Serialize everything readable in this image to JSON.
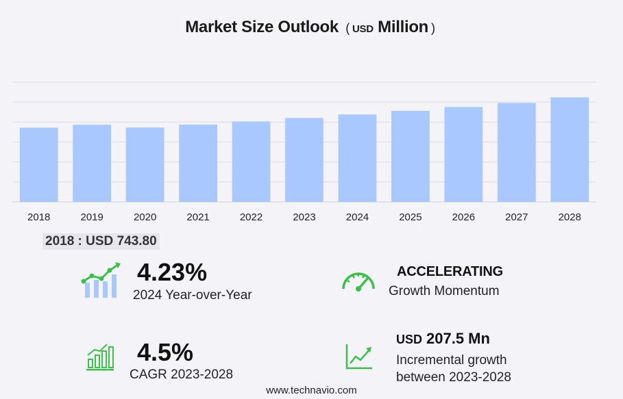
{
  "title": {
    "main": "Market Size Outlook",
    "paren_open": "(",
    "unit_small": "USD",
    "unit_big": "Million",
    "paren_close": ")"
  },
  "chart_data": {
    "type": "bar",
    "categories": [
      "2018",
      "2019",
      "2020",
      "2021",
      "2022",
      "2023",
      "2024",
      "2025",
      "2026",
      "2027",
      "2028"
    ],
    "values": [
      743.8,
      773.0,
      745.0,
      774.0,
      806.0,
      840.0,
      875.5,
      912.5,
      951.0,
      991.0,
      1047.5
    ],
    "ylim": [
      0,
      1200
    ],
    "grid": true,
    "bar_color": "#a9c8ff"
  },
  "first_value": {
    "label": "2018 : USD",
    "value": "743.80"
  },
  "metrics": {
    "yoy": {
      "value": "4.23%",
      "label": "2024 Year-over-Year",
      "icon": "growth-chart-icon"
    },
    "momentum": {
      "value": "ACCELERATING",
      "label": "Growth Momentum",
      "icon": "speedometer-icon"
    },
    "cagr": {
      "value": "4.5%",
      "label": "CAGR 2023-2028",
      "icon": "bar-growth-icon"
    },
    "incremental": {
      "currency": "USD",
      "value": "207.5 Mn",
      "label_line1": "Incremental growth",
      "label_line2": "between 2023-2028",
      "icon": "trend-line-icon"
    }
  },
  "colors": {
    "green": "#3cbf4a",
    "bar": "#a9c8ff",
    "grid": "#dcdce4"
  },
  "footer": "www.technavio.com"
}
